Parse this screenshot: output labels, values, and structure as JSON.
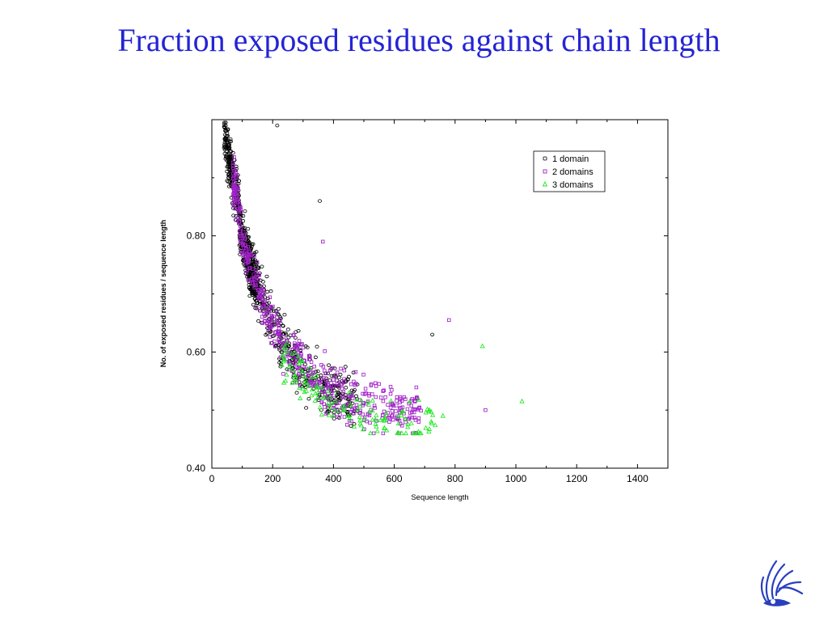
{
  "slide": {
    "title": "Fraction exposed residues against chain length"
  },
  "colors": {
    "title": "#2424d4",
    "series_1": "#000000",
    "series_2": "#a020c8",
    "series_3": "#1ee81e",
    "logo": "#2a3fbf"
  },
  "logo": {
    "icon": "griffin-emblem-icon"
  },
  "chart_data": {
    "type": "scatter",
    "title": "",
    "xlabel": "Sequence length",
    "ylabel": "No. of exposed residues / sequence length",
    "xlim": [
      0,
      1500
    ],
    "ylim": [
      0.4,
      1.0
    ],
    "xticks": [
      "0",
      "200",
      "400",
      "600",
      "800",
      "1000",
      "1200",
      "1400"
    ],
    "yticks": [
      "0.40",
      "0.60",
      "0.80"
    ],
    "legend_position": "top-right",
    "grid": false,
    "series": [
      {
        "name": "1 domain",
        "marker": "circle",
        "color": "#000000",
        "count": 900
      },
      {
        "name": "2 domains",
        "marker": "square",
        "color": "#a020c8",
        "count": 520
      },
      {
        "name": "3 domains",
        "marker": "triangle",
        "color": "#1ee81e",
        "count": 140
      }
    ],
    "notable_points": [
      {
        "series": "1 domain",
        "x": 215,
        "y": 0.99
      },
      {
        "series": "1 domain",
        "x": 355,
        "y": 0.86
      },
      {
        "series": "1 domain",
        "x": 725,
        "y": 0.63
      },
      {
        "series": "2 domains",
        "x": 365,
        "y": 0.79
      },
      {
        "series": "2 domains",
        "x": 780,
        "y": 0.655
      },
      {
        "series": "2 domains",
        "x": 900,
        "y": 0.5
      },
      {
        "series": "2 domains",
        "x": 610,
        "y": 0.485
      },
      {
        "series": "3 domains",
        "x": 1020,
        "y": 0.515
      },
      {
        "series": "3 domains",
        "x": 890,
        "y": 0.61
      },
      {
        "series": "3 domains",
        "x": 575,
        "y": 0.465
      },
      {
        "series": "3 domains",
        "x": 760,
        "y": 0.49
      }
    ]
  }
}
